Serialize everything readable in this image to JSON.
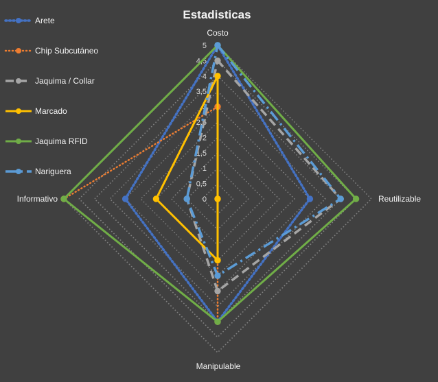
{
  "chart_data": {
    "type": "radar",
    "title": "Estadisticas",
    "axes": [
      "Costo",
      "Reutilizable",
      "Manipulable",
      "Informativo"
    ],
    "ticks": [
      "0",
      "0,5",
      "1",
      "1,5",
      "2",
      "2,5",
      "3",
      "3,5",
      "4",
      "4,5",
      "5"
    ],
    "rmax": 5,
    "grid": "dotted",
    "legend_position": "left",
    "series": [
      {
        "name": "Arete",
        "values": [
          5,
          3,
          4,
          3
        ],
        "color": "#4472c4",
        "style": "dotted-thick"
      },
      {
        "name": "Chip Subcutáneo",
        "values": [
          3,
          0,
          4,
          5
        ],
        "color": "#ed7d31",
        "style": "dotted"
      },
      {
        "name": "Jaquima / Collar",
        "values": [
          4.5,
          4,
          3,
          1
        ],
        "color": "#a5a5a5",
        "style": "dash"
      },
      {
        "name": "Marcado",
        "values": [
          4,
          0,
          2,
          2
        ],
        "color": "#ffc000",
        "style": "solid"
      },
      {
        "name": "Jaquima RFID",
        "values": [
          5,
          4.5,
          4,
          5
        ],
        "color": "#70ad47",
        "style": "solid"
      },
      {
        "name": "Nariguera",
        "values": [
          5,
          4,
          2.5,
          1
        ],
        "color": "#5b9bd5",
        "style": "dashdot"
      }
    ]
  }
}
